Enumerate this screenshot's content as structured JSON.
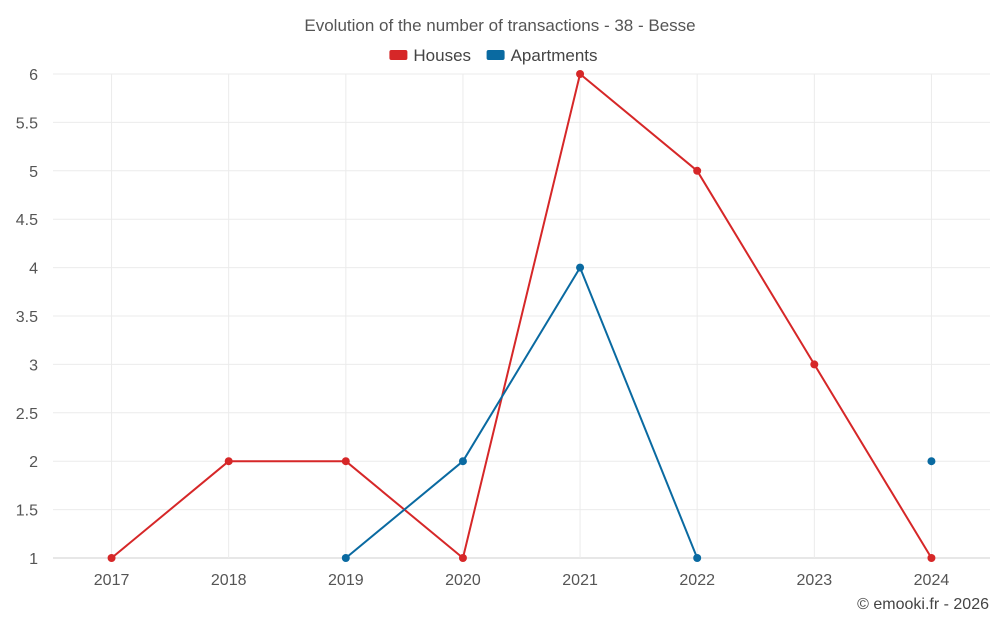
{
  "chart_data": {
    "type": "line",
    "title": "Evolution of the number of transactions - 38 - Besse",
    "x": [
      "2017",
      "2018",
      "2019",
      "2020",
      "2021",
      "2022",
      "2023",
      "2024"
    ],
    "yticks": [
      "1",
      "1.5",
      "2",
      "2.5",
      "3",
      "3.5",
      "4",
      "4.5",
      "5",
      "5.5",
      "6"
    ],
    "ylim": [
      1,
      6
    ],
    "grid": true,
    "legend_position": "top-center",
    "series": [
      {
        "name": "Houses",
        "color": "#d62728",
        "values": [
          1,
          2,
          2,
          1,
          6,
          5,
          3,
          1
        ]
      },
      {
        "name": "Apartments",
        "color": "#0a6aa1",
        "values": [
          null,
          null,
          1,
          2,
          4,
          1,
          null,
          2
        ]
      }
    ]
  },
  "credit": "© emooki.fr - 2026"
}
